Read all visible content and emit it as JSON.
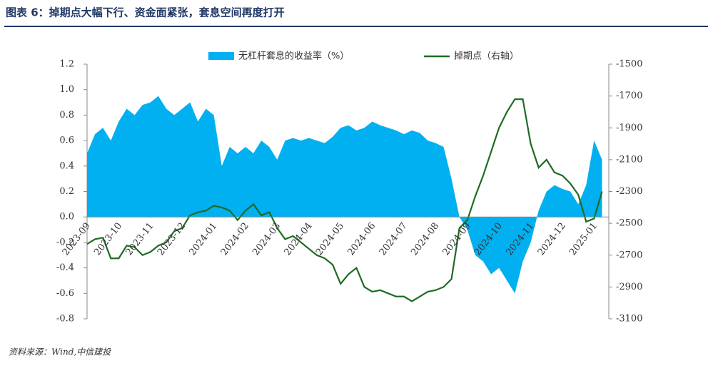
{
  "chart_data": {
    "type": "area-line",
    "title": "图表 6：掉期点大幅下行、资金面紧张，套息空间再度打开",
    "source": "资料来源：Wind,中信建投",
    "categories": [
      "2023-09",
      null,
      null,
      null,
      "2023-10",
      null,
      null,
      null,
      "2023-11",
      null,
      null,
      null,
      "2023-12",
      null,
      null,
      null,
      "2024-01",
      null,
      null,
      null,
      "2024-02",
      null,
      null,
      null,
      "2024-03",
      null,
      null,
      null,
      "2024-04",
      null,
      null,
      null,
      "2024-05",
      null,
      null,
      null,
      "2024-06",
      null,
      null,
      null,
      "2024-07",
      null,
      null,
      null,
      "2024-08",
      null,
      null,
      null,
      "2024-09",
      null,
      null,
      null,
      "2024-10",
      null,
      null,
      null,
      "2024-11",
      null,
      null,
      null,
      "2024-12",
      null,
      null,
      null,
      "2025-01",
      null
    ],
    "series": [
      {
        "name": "无杠杆套息的收益率（%）",
        "color": "#00b0f0",
        "kind": "area",
        "values": [
          0.5,
          0.65,
          0.7,
          0.6,
          0.75,
          0.85,
          0.8,
          0.88,
          0.9,
          0.95,
          0.85,
          0.8,
          0.85,
          0.9,
          0.75,
          0.85,
          0.8,
          0.4,
          0.55,
          0.5,
          0.55,
          0.5,
          0.6,
          0.55,
          0.45,
          0.6,
          0.62,
          0.6,
          0.62,
          0.6,
          0.58,
          0.63,
          0.7,
          0.72,
          0.68,
          0.7,
          0.75,
          0.72,
          0.7,
          0.68,
          0.65,
          0.68,
          0.66,
          0.6,
          0.58,
          0.55,
          0.3,
          0.0,
          -0.1,
          -0.3,
          -0.35,
          -0.45,
          -0.4,
          -0.5,
          -0.6,
          -0.35,
          -0.2,
          0.05,
          0.2,
          0.25,
          0.22,
          0.2,
          0.1,
          0.25,
          0.6,
          0.45
        ]
      },
      {
        "name": "掉期点（右轴）",
        "color": "#1e6b24",
        "kind": "line",
        "axis": "y2",
        "values": [
          -2630,
          -2600,
          -2590,
          -2720,
          -2720,
          -2640,
          -2650,
          -2700,
          -2680,
          -2640,
          -2620,
          -2550,
          -2530,
          -2450,
          -2430,
          -2420,
          -2390,
          -2400,
          -2420,
          -2480,
          -2420,
          -2380,
          -2450,
          -2430,
          -2530,
          -2600,
          -2580,
          -2620,
          -2660,
          -2700,
          -2720,
          -2760,
          -2880,
          -2820,
          -2780,
          -2900,
          -2930,
          -2920,
          -2940,
          -2960,
          -2960,
          -2990,
          -2960,
          -2930,
          -2920,
          -2900,
          -2850,
          -2530,
          -2480,
          -2330,
          -2200,
          -2050,
          -1900,
          -1800,
          -1720,
          -1720,
          -2000,
          -2150,
          -2100,
          -2180,
          -2200,
          -2250,
          -2320,
          -2490,
          -2470,
          -2300
        ]
      }
    ],
    "ylim": [
      -0.8,
      1.2
    ],
    "yticks": [
      {
        "value": -0.8,
        "label": "-0.8"
      },
      -0.6,
      -0.4,
      -0.2,
      {
        "value": 0,
        "label": "0.0"
      },
      0.2,
      0.4,
      0.6,
      0.8,
      {
        "value": 1,
        "label": "1.0"
      },
      1.2
    ],
    "y2lim": [
      -3100,
      -1500
    ],
    "y2ticks": [
      -3100,
      -2900,
      -2700,
      -2500,
      -2300,
      -2100,
      -1900,
      -1700,
      -1500
    ]
  }
}
